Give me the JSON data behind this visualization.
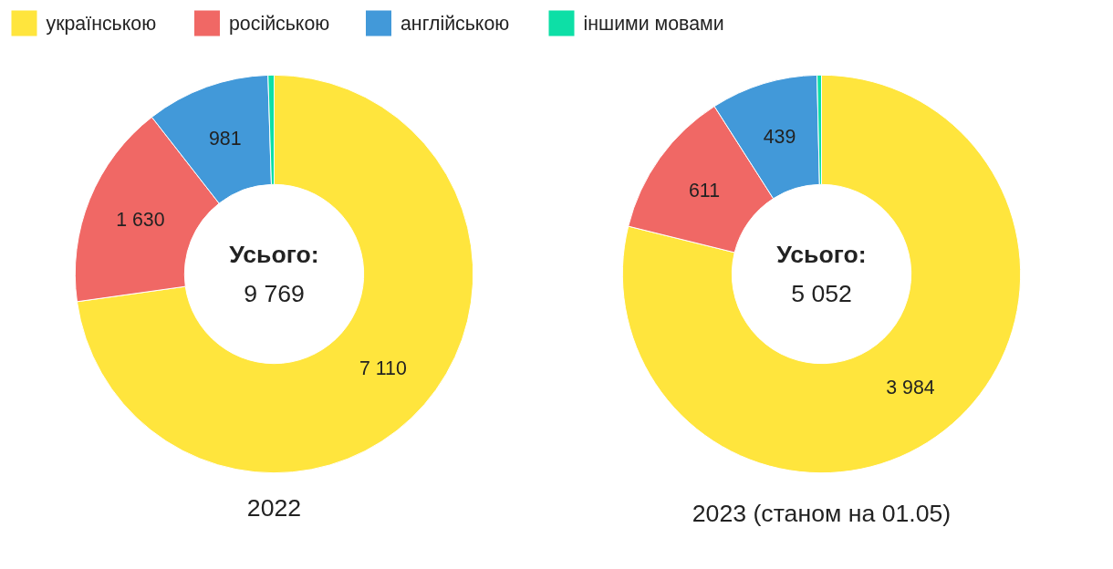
{
  "chart_data": [
    {
      "type": "donut",
      "title": "2022",
      "categories": [
        "українською",
        "російською",
        "англійською",
        "іншими мовами"
      ],
      "values": [
        7110,
        1630,
        981,
        48
      ],
      "colors": [
        "#ffe53d",
        "#f06865",
        "#4299d9",
        "#0ddfa6"
      ],
      "value_labels": [
        "7 110",
        "1 630",
        "981",
        null
      ],
      "annotations": [
        "Усього:",
        "9 769"
      ],
      "legend": "top"
    },
    {
      "type": "donut",
      "title": "2023 (станом на 01.05)",
      "categories": [
        null,
        null,
        null,
        null
      ],
      "values": [
        3984,
        611,
        439,
        18
      ],
      "colors": [
        "#ffe53d",
        "#f06865",
        "#4299d9",
        "#0ddfa6"
      ],
      "value_labels": [
        "3 984",
        "611",
        "439",
        null
      ],
      "annotations": [
        "Усього:",
        "5 052"
      ]
    }
  ]
}
